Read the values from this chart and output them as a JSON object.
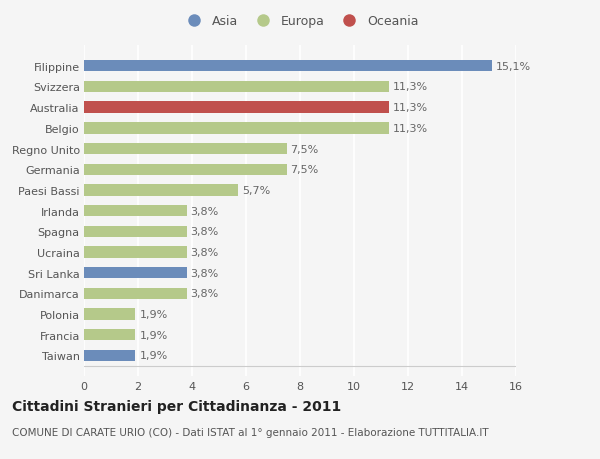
{
  "categories": [
    "Taiwan",
    "Francia",
    "Polonia",
    "Danimarca",
    "Sri Lanka",
    "Ucraina",
    "Spagna",
    "Irlanda",
    "Paesi Bassi",
    "Germania",
    "Regno Unito",
    "Belgio",
    "Australia",
    "Svizzera",
    "Filippine"
  ],
  "values": [
    1.9,
    1.9,
    1.9,
    3.8,
    3.8,
    3.8,
    3.8,
    3.8,
    5.7,
    7.5,
    7.5,
    11.3,
    11.3,
    11.3,
    15.1
  ],
  "labels": [
    "1,9%",
    "1,9%",
    "1,9%",
    "3,8%",
    "3,8%",
    "3,8%",
    "3,8%",
    "3,8%",
    "5,7%",
    "7,5%",
    "7,5%",
    "11,3%",
    "11,3%",
    "11,3%",
    "15,1%"
  ],
  "colors": [
    "#6b8cba",
    "#b5c98a",
    "#b5c98a",
    "#b5c98a",
    "#6b8cba",
    "#b5c98a",
    "#b5c98a",
    "#b5c98a",
    "#b5c98a",
    "#b5c98a",
    "#b5c98a",
    "#b5c98a",
    "#c0504d",
    "#b5c98a",
    "#6b8cba"
  ],
  "legend": [
    {
      "label": "Asia",
      "color": "#6b8cba"
    },
    {
      "label": "Europa",
      "color": "#b5c98a"
    },
    {
      "label": "Oceania",
      "color": "#c0504d"
    }
  ],
  "xlim": [
    0,
    16
  ],
  "xticks": [
    0,
    2,
    4,
    6,
    8,
    10,
    12,
    14,
    16
  ],
  "title": "Cittadini Stranieri per Cittadinanza - 2011",
  "subtitle": "COMUNE DI CARATE URIO (CO) - Dati ISTAT al 1° gennaio 2011 - Elaborazione TUTTITALIA.IT",
  "background_color": "#f5f5f5",
  "bar_height": 0.55,
  "title_fontsize": 10,
  "subtitle_fontsize": 7.5,
  "label_fontsize": 8,
  "tick_fontsize": 8,
  "legend_fontsize": 9
}
